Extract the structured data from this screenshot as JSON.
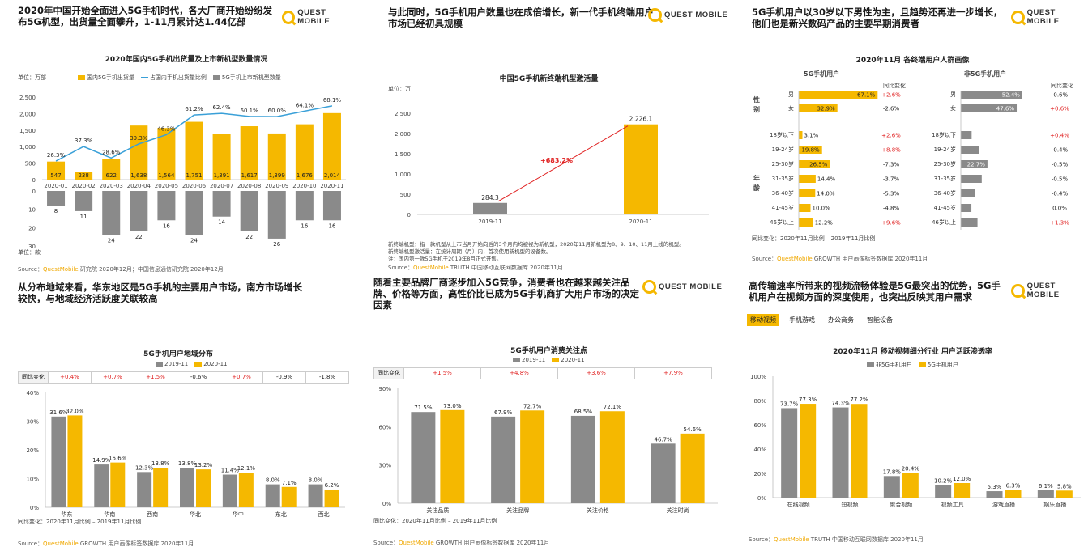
{
  "logo_text": "QUEST MOBILE",
  "colors": {
    "yellow": "#f5b800",
    "gray": "#8a8a8a",
    "blue": "#3aa0d8",
    "red": "#e02020"
  },
  "panels": {
    "p1": {
      "title": "2020年中国开始全面进入5G手机时代，各大厂商开始纷纷发布5G机型，出货量全面攀升，1-11月累计达1.44亿部",
      "source_prefix": "Source：",
      "source_brand": "QuestMobile",
      "source_rest": " 研究院 2020年12月；中国信息通信研究院 2020年12月"
    },
    "p2": {
      "title": "与此同时，5G手机用户数量也在成倍增长，新一代手机终端用户市场已经初具规模",
      "note1": "新终端机型：指一款机型从上市当月开始向后的3个月内均被视为新机型，2020年11月新机型为8、9、10、11月上线的机型。",
      "note2": "新终端机型激活量：在统计周期（月）内，首次使用新机型的设备数。",
      "note3": "注：国内第一款5G手机于2019年8月正式开售。",
      "source_prefix": "Source：",
      "source_brand": "QuestMobile",
      "source_rest": " TRUTH 中国移动互联网数据库 2020年11月"
    },
    "p3": {
      "title": "5G手机用户以30岁以下男性为主，且趋势还再进一步增长，他们也是新兴数码产品的主要早期消费者",
      "chart_title": "2020年11月 各终端用户人群画像",
      "left_header": "5G手机用户",
      "right_header": "非5G手机用户",
      "chg_header": "同比变化",
      "gender_label": "性别",
      "age_label": "年龄",
      "note": "同比变化：2020年11月比例 – 2019年11月比例",
      "source_prefix": "Source：",
      "source_brand": "QuestMobile",
      "source_rest": " GROWTH 用户画像标签数据库 2020年11月"
    },
    "p4": {
      "title": "从分布地域来看，华东地区是5G手机的主要用户市场，南方市场增长较快，与地域经济活跃度关联较高",
      "chart_title": "5G手机用户地域分布",
      "chg_label": "同比变化",
      "note": "同比变化：2020年11月比例 – 2019年11月比例",
      "source_prefix": "Source：",
      "source_brand": "QuestMobile",
      "source_rest": " GROWTH 用户画像标签数据库 2020年11月"
    },
    "p5": {
      "title": "随着主要品牌厂商逐步加入5G竞争，消费者也在越来越关注品牌、价格等方面，高性价比已成为5G手机商扩大用户市场的决定因素",
      "chart_title": "5G手机用户消费关注点",
      "chg_label": "同比变化",
      "note": "同比变化：2020年11月比例 – 2019年11月比例",
      "source_prefix": "Source：",
      "source_brand": "QuestMobile",
      "source_rest": " GROWTH 用户画像标签数据库 2020年11月"
    },
    "p6": {
      "title": "高传输速率所带来的视频流畅体验是5G最突出的优势，5G手机用户在视频方面的深度使用，也突出反映其用户需求",
      "tabs": [
        "移动视频",
        "手机游戏",
        "办公商务",
        "智能设备"
      ],
      "chart_title": "2020年11月 移动视频细分行业 用户活跃渗透率",
      "source_prefix": "Source：",
      "source_brand": "QuestMobile",
      "source_rest": " TRUTH 中国移动互联网数据库 2020年11月"
    }
  },
  "chart_data": [
    {
      "id": "shipments",
      "type": "bar",
      "title": "2020年国内5G手机出货量及上市新机型数量情况",
      "unit_top": "单位：万部",
      "unit_bottom": "单位：款",
      "legend": [
        "国内5G手机出货量",
        "占国内手机出货量比例",
        "5G手机上市新机型数量"
      ],
      "categories": [
        "2020-01",
        "2020-02",
        "2020-03",
        "2020-04",
        "2020-05",
        "2020-06",
        "2020-07",
        "2020-08",
        "2020-09",
        "2020-10",
        "2020-11"
      ],
      "shipments": [
        547,
        238,
        622,
        1638,
        1564,
        1751,
        1391,
        1617,
        1399,
        1676,
        2014
      ],
      "share_labels": [
        "26.3%",
        "37.3%",
        "28.6%",
        "39.3%",
        "46.3%",
        "61.2%",
        "62.4%",
        "60.1%",
        "60.0%",
        "64.1%",
        "68.1%"
      ],
      "share": [
        26.3,
        37.3,
        28.6,
        39.3,
        46.3,
        61.2,
        62.4,
        60.1,
        60.0,
        64.1,
        68.1
      ],
      "models": [
        8,
        11,
        24,
        22,
        16,
        24,
        14,
        22,
        26,
        16,
        16
      ],
      "y_ticks_top": [
        "2,500",
        "2,000",
        "1,500",
        "1,000",
        "500",
        "0"
      ],
      "y_ticks_bottom": [
        "0",
        "10",
        "20",
        "30"
      ]
    },
    {
      "id": "activations",
      "type": "bar",
      "title": "中国5G手机新终端机型激活量",
      "unit": "单位：万",
      "categories": [
        "2019-11",
        "2020-11"
      ],
      "values": [
        284.3,
        2226.1
      ],
      "value_labels": [
        "284.3",
        "2,226.1"
      ],
      "growth_label": "+683.2%",
      "y_ticks": [
        "2,500",
        "2,000",
        "1,500",
        "1,000",
        "500",
        "0"
      ],
      "ylim": [
        0,
        2500
      ]
    },
    {
      "id": "portrait",
      "type": "bar",
      "gender_cats": [
        "男",
        "女"
      ],
      "age_cats": [
        "18岁以下",
        "19-24岁",
        "25-30岁",
        "31-35岁",
        "36-40岁",
        "41-45岁",
        "46岁以上"
      ],
      "fiveg_gender": [
        67.1,
        32.9
      ],
      "fiveg_gender_labels": [
        "67.1%",
        "32.9%"
      ],
      "fiveg_gender_chg": [
        "+2.6%",
        "-2.6%"
      ],
      "fiveg_age": [
        3.1,
        19.8,
        26.5,
        14.4,
        14.0,
        10.0,
        12.2
      ],
      "fiveg_age_labels": [
        "3.1%",
        "19.8%",
        "26.5%",
        "14.4%",
        "14.0%",
        "10.0%",
        "12.2%"
      ],
      "fiveg_age_chg": [
        "+2.6%",
        "+8.8%",
        "-7.3%",
        "-3.7%",
        "-5.3%",
        "-4.8%",
        "+9.6%"
      ],
      "non_gender": [
        52.4,
        47.6
      ],
      "non_gender_labels": [
        "52.4%",
        "47.6%"
      ],
      "non_gender_chg": [
        "-0.6%",
        "+0.6%"
      ],
      "non_age": [
        9.2,
        15.3,
        22.7,
        17.8,
        11.8,
        9.0,
        14.2
      ],
      "non_age_labels": [
        "9.2%",
        "15.3%",
        "22.7%",
        "17.8%",
        "11.8%",
        "9.0%",
        "14.2%"
      ],
      "non_age_chg": [
        "+0.4%",
        "-0.4%",
        "-0.5%",
        "-0.5%",
        "-0.4%",
        "0.0%",
        "+1.3%"
      ]
    },
    {
      "id": "region",
      "type": "bar",
      "legend": [
        "2019-11",
        "2020-11"
      ],
      "categories": [
        "华东",
        "华南",
        "西南",
        "华北",
        "华中",
        "东北",
        "西北"
      ],
      "series": [
        {
          "name": "2019-11",
          "values": [
            31.6,
            14.9,
            12.3,
            13.8,
            11.4,
            8.0,
            8.0
          ],
          "labels": [
            "31.6%",
            "14.9%",
            "12.3%",
            "13.8%",
            "11.4%",
            "8.0%",
            "8.0%"
          ]
        },
        {
          "name": "2020-11",
          "values": [
            32.0,
            15.6,
            13.8,
            13.2,
            12.1,
            7.1,
            6.2
          ],
          "labels": [
            "32.0%",
            "15.6%",
            "13.8%",
            "13.2%",
            "12.1%",
            "7.1%",
            "6.2%"
          ]
        }
      ],
      "changes": [
        "+0.4%",
        "+0.7%",
        "+1.5%",
        "-0.6%",
        "+0.7%",
        "-0.9%",
        "-1.8%"
      ],
      "y_ticks": [
        "40%",
        "30%",
        "20%",
        "10%",
        "0%"
      ],
      "ylim": [
        0,
        40
      ]
    },
    {
      "id": "focus",
      "type": "bar",
      "legend": [
        "2019-11",
        "2020-11"
      ],
      "categories": [
        "关注品质",
        "关注品牌",
        "关注价格",
        "关注时尚"
      ],
      "series": [
        {
          "name": "2019-11",
          "values": [
            71.5,
            67.9,
            68.5,
            46.7
          ],
          "labels": [
            "71.5%",
            "67.9%",
            "68.5%",
            "46.7%"
          ]
        },
        {
          "name": "2020-11",
          "values": [
            73.0,
            72.7,
            72.1,
            54.6
          ],
          "labels": [
            "73.0%",
            "72.7%",
            "72.1%",
            "54.6%"
          ]
        }
      ],
      "changes": [
        "+1.5%",
        "+4.8%",
        "+3.6%",
        "+7.9%"
      ],
      "y_ticks": [
        "90%",
        "60%",
        "30%",
        "0%"
      ],
      "ylim": [
        0,
        90
      ]
    },
    {
      "id": "video",
      "type": "bar",
      "legend": [
        "非5G手机用户",
        "5G手机用户"
      ],
      "categories": [
        "在线视频",
        "短视频",
        "聚合视频",
        "视频工具",
        "游戏直播",
        "娱乐直播"
      ],
      "series": [
        {
          "name": "非5G手机用户",
          "values": [
            73.7,
            74.3,
            17.8,
            10.2,
            5.3,
            6.1
          ],
          "labels": [
            "73.7%",
            "74.3%",
            "17.8%",
            "10.2%",
            "5.3%",
            "6.1%"
          ]
        },
        {
          "name": "5G手机用户",
          "values": [
            77.3,
            77.2,
            20.4,
            12.0,
            6.3,
            5.8
          ],
          "labels": [
            "77.3%",
            "77.2%",
            "20.4%",
            "12.0%",
            "6.3%",
            "5.8%"
          ]
        }
      ],
      "y_ticks": [
        "100%",
        "80%",
        "60%",
        "40%",
        "20%",
        "0%"
      ],
      "ylim": [
        0,
        100
      ]
    }
  ]
}
